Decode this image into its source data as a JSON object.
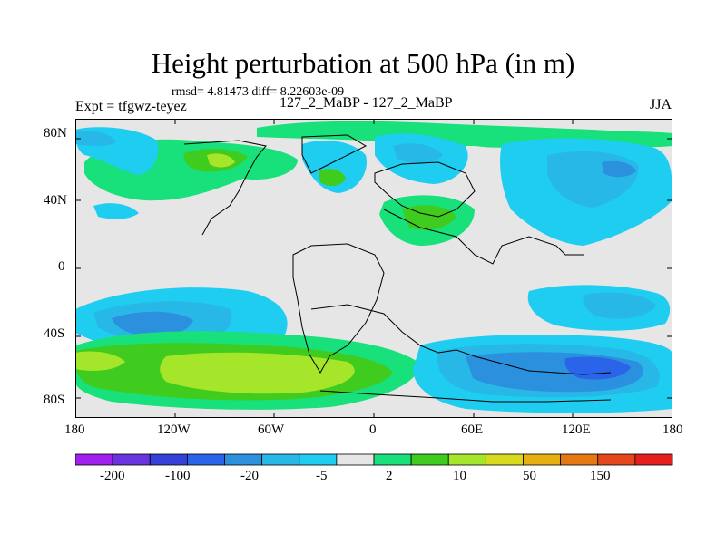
{
  "title": "Height perturbation at 500 hPa (in m)",
  "stats": "rmsd= 4.81473 diff= 8.22603e-09",
  "expt": "Expt = tfgwz-teyez",
  "exp_label": "127_2_MaBP - 127_2_MaBP",
  "season": "JJA",
  "lat_ticks": [
    "80N",
    "40N",
    "0",
    "40S",
    "80S"
  ],
  "lon_ticks": [
    "180",
    "120W",
    "60W",
    "0",
    "60E",
    "120E",
    "180"
  ],
  "colorbar": {
    "labels": [
      "-200",
      "-100",
      "-20",
      "-5",
      "2",
      "10",
      "50",
      "150"
    ],
    "colors": [
      "#a020f0",
      "#6a33e0",
      "#3341d8",
      "#2a64e8",
      "#2b90de",
      "#27b8e8",
      "#1fcdf0",
      "#e6e6e6",
      "#18e07a",
      "#3fcc1e",
      "#a6e62a",
      "#d8d81c",
      "#e6b010",
      "#e67814",
      "#e6461e",
      "#e61e1e"
    ]
  },
  "field_colors": {
    "background": "#e6e6e6",
    "neg_weak": "#1fcdf0",
    "neg_mid": "#27b8e8",
    "neg_strong": "#2b90de",
    "neg_stronger": "#2a64e8",
    "pos_weak": "#18e07a",
    "pos_mid": "#3fcc1e",
    "pos_strong": "#a6e62a",
    "pos_stronger": "#d8d81c"
  }
}
